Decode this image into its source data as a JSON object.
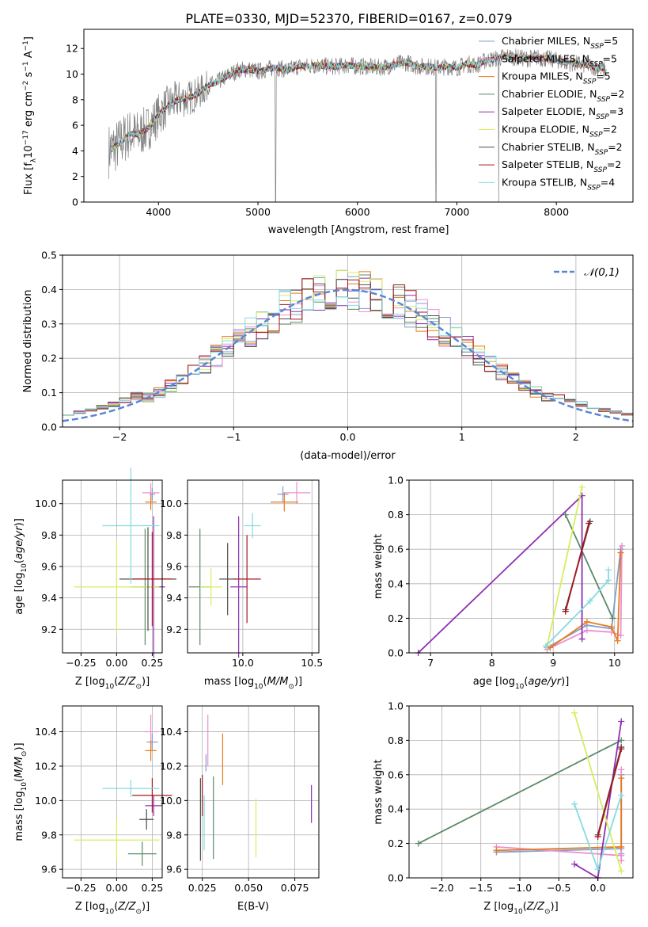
{
  "figure_title": "PLATE=0330, MJD=52370, FIBERID=0167, z=0.079",
  "colors": {
    "chabrier_miles": "#7f9fcf",
    "salpeter_miles": "#ea8fcf",
    "kroupa_miles": "#e77b1c",
    "chabrier_elodie": "#5b8a67",
    "salpeter_elodie": "#8e2fb0",
    "kroupa_elodie": "#d6ee5c",
    "chabrier_stelib": "#4e4e4e",
    "salpeter_stelib": "#a5161c",
    "kroupa_stelib": "#84dbe0",
    "data": "#808080",
    "gaussian": "#5b86d6",
    "grid": "#b0b0b0"
  },
  "chart_data": [
    {
      "id": "spectrum",
      "type": "line",
      "xlabel": "wavelength [Angstrom, rest frame]",
      "ylabel": "Flux [f_λ10^-17 erg cm^-2 s^-1 A^-1]",
      "xlim": [
        3250,
        8770
      ],
      "ylim": [
        0,
        13.5
      ],
      "xticks": [
        4000,
        5000,
        6000,
        7000,
        8000
      ],
      "yticks": [
        0,
        2,
        4,
        6,
        8,
        10,
        12
      ],
      "legend_position": "right",
      "legend": [
        {
          "label": "Chabrier MILES, N_SSP=5",
          "color_key": "chabrier_miles"
        },
        {
          "label": "Salpeter MILES, N_SSP=5",
          "color_key": "salpeter_miles"
        },
        {
          "label": "Kroupa MILES, N_SSP=5",
          "color_key": "kroupa_miles"
        },
        {
          "label": "Chabrier ELODIE, N_SSP=2",
          "color_key": "chabrier_elodie"
        },
        {
          "label": "Salpeter ELODIE, N_SSP=3",
          "color_key": "salpeter_elodie"
        },
        {
          "label": "Kroupa ELODIE, N_SSP=2",
          "color_key": "kroupa_elodie"
        },
        {
          "label": "Chabrier STELIB, N_SSP=2",
          "color_key": "chabrier_stelib"
        },
        {
          "label": "Salpeter STELIB, N_SSP=2",
          "color_key": "salpeter_stelib"
        },
        {
          "label": "Kroupa STELIB, N_SSP=4",
          "color_key": "kroupa_stelib"
        }
      ],
      "continuum": {
        "x": [
          3500,
          3600,
          3700,
          3800,
          3900,
          4000,
          4100,
          4200,
          4300,
          4400,
          4500,
          4600,
          4700,
          4800,
          4900,
          5000,
          5100,
          5200,
          5300,
          5400,
          5500,
          5600,
          5700,
          5800,
          5900,
          6000,
          6100,
          6200,
          6300,
          6400,
          6500,
          6600,
          6700,
          6800,
          6900,
          7000,
          7100,
          7200,
          7300,
          7400,
          7500,
          7600,
          7700,
          7800,
          7900,
          8000,
          8100,
          8200,
          8300,
          8400,
          8500
        ],
        "y": [
          4.0,
          4.5,
          5.3,
          5.3,
          5.8,
          6.8,
          7.6,
          8.0,
          8.1,
          8.5,
          9.1,
          9.4,
          9.9,
          10.3,
          10.4,
          10.2,
          10.4,
          10.5,
          10.3,
          10.6,
          10.6,
          10.7,
          10.6,
          10.6,
          10.7,
          10.6,
          10.6,
          10.5,
          10.6,
          10.8,
          10.9,
          10.6,
          10.6,
          10.5,
          10.6,
          10.5,
          10.8,
          10.7,
          11.1,
          11.2,
          11.4,
          11.3,
          11.2,
          11.3,
          11.2,
          11.1,
          10.9,
          10.8,
          10.7,
          10.5,
          10.3
        ]
      },
      "data_noise_amplitude": {
        "below_4500": 2.2,
        "above_4500": 0.7
      },
      "absorption_features": [
        {
          "x": 5178,
          "depth_to": 0.0
        },
        {
          "x": 6790,
          "depth_to": 0.0
        },
        {
          "x": 7420,
          "depth_to": 0.0
        }
      ]
    },
    {
      "id": "residual_histogram",
      "type": "bar",
      "xlabel": "(data-model)/error",
      "ylabel": "Normed distribution",
      "xlim": [
        -2.5,
        2.5
      ],
      "ylim": [
        0,
        0.5
      ],
      "xticks": [
        -2,
        -1,
        0,
        1,
        2
      ],
      "yticks": [
        0.0,
        0.1,
        0.2,
        0.3,
        0.4,
        0.5
      ],
      "bin_width": 0.1,
      "legend_position": "top-right",
      "gaussian_label": "𝒩(0,1)",
      "base_bins": [
        0.025,
        0.028,
        0.031,
        0.036,
        0.043,
        0.05,
        0.057,
        0.064,
        0.072,
        0.08,
        0.089,
        0.1,
        0.112,
        0.125,
        0.139,
        0.154,
        0.171,
        0.189,
        0.205,
        0.222,
        0.24,
        0.258,
        0.275,
        0.292,
        0.308,
        0.323,
        0.338,
        0.352,
        0.363,
        0.372,
        0.382,
        0.39,
        0.396,
        0.4,
        0.402,
        0.399,
        0.395,
        0.4,
        0.41,
        0.42,
        0.42,
        0.41,
        0.398,
        0.385,
        0.372,
        0.358,
        0.343,
        0.327,
        0.31,
        0.293,
        0.275,
        0.258,
        0.24,
        0.222,
        0.205,
        0.189,
        0.171,
        0.154,
        0.139,
        0.125,
        0.112,
        0.1,
        0.089,
        0.08,
        0.072,
        0.064,
        0.057,
        0.05,
        0.045,
        0.04,
        0.036,
        0.032,
        0.029,
        0.027,
        0.026,
        0.025,
        0.024,
        0.023,
        0.023,
        0.023,
        0.022,
        0.024,
        0.025,
        0.026,
        0.027,
        0.028,
        0.03,
        0.032,
        0.034,
        0.036,
        0.039,
        0.042,
        0.045,
        0.049,
        0.053,
        0.058,
        0.063,
        0.069,
        0.076,
        0.083
      ]
    },
    {
      "id": "age_vs_Z",
      "type": "scatter",
      "xlabel": "Z [log10(Z/Z⊙)]",
      "ylabel": "age  [log10(age/yr)]",
      "xlim": [
        -0.38,
        0.32
      ],
      "ylim": [
        9.05,
        10.15
      ],
      "xticks": [
        -0.25,
        0.0,
        0.25
      ],
      "xticklabels": [
        "−0.25",
        "0.00",
        "0.25"
      ],
      "yticks": [
        9.2,
        9.4,
        9.6,
        9.8,
        10.0
      ],
      "points": [
        {
          "key": "chabrier_miles",
          "x": 0.25,
          "xerr": 0.02,
          "y": 10.06,
          "yerr": 0.04
        },
        {
          "key": "salpeter_miles",
          "x": 0.24,
          "xerr": 0.06,
          "y": 10.07,
          "yerr": 0.06
        },
        {
          "key": "kroupa_miles",
          "x": 0.24,
          "xerr": 0.04,
          "y": 10.01,
          "yerr": 0.05
        },
        {
          "key": "chabrier_elodie",
          "x": 0.2,
          "xerr": 0.1,
          "y": 9.47,
          "yerr": 0.37
        },
        {
          "key": "salpeter_elodie",
          "x": 0.26,
          "xerr": 0.08,
          "y": 9.47,
          "yerr": 0.45
        },
        {
          "key": "kroupa_elodie",
          "x": 0.0,
          "xerr": 0.3,
          "y": 9.47,
          "yerr": 0.3
        },
        {
          "key": "chabrier_stelib",
          "x": 0.22,
          "xerr": 0.2,
          "y": 9.52,
          "yerr": 0.33
        },
        {
          "key": "salpeter_stelib",
          "x": 0.25,
          "xerr": 0.14,
          "y": 9.52,
          "yerr": 0.3
        },
        {
          "key": "kroupa_stelib",
          "x": 0.1,
          "xerr": 0.2,
          "y": 9.86,
          "yerr": 0.37
        }
      ]
    },
    {
      "id": "age_vs_mass",
      "type": "scatter",
      "xlabel": "mass [log10(M/M⊙)]",
      "ylabel": "",
      "xlim": [
        9.6,
        10.55
      ],
      "ylim": [
        9.05,
        10.15
      ],
      "xticks": [
        10.0,
        10.5
      ],
      "xticklabels": [
        "10.0",
        "10.5"
      ],
      "yticks": [
        9.2,
        9.4,
        9.6,
        9.8,
        10.0
      ],
      "points": [
        {
          "key": "chabrier_miles",
          "x": 10.29,
          "xerr": 0.04,
          "y": 10.06,
          "yerr": 0.05
        },
        {
          "key": "salpeter_miles",
          "x": 10.39,
          "xerr": 0.1,
          "y": 10.07,
          "yerr": 0.07
        },
        {
          "key": "kroupa_miles",
          "x": 10.3,
          "xerr": 0.1,
          "y": 10.01,
          "yerr": 0.06
        },
        {
          "key": "chabrier_elodie",
          "x": 9.69,
          "xerr": 0.08,
          "y": 9.47,
          "yerr": 0.37
        },
        {
          "key": "salpeter_elodie",
          "x": 9.97,
          "xerr": 0.06,
          "y": 9.47,
          "yerr": 0.45
        },
        {
          "key": "kroupa_elodie",
          "x": 9.77,
          "xerr": 0.08,
          "y": 9.47,
          "yerr": 0.12
        },
        {
          "key": "chabrier_stelib",
          "x": 9.89,
          "xerr": 0.06,
          "y": 9.52,
          "yerr": 0.23
        },
        {
          "key": "salpeter_stelib",
          "x": 10.03,
          "xerr": 0.1,
          "y": 9.52,
          "yerr": 0.28
        },
        {
          "key": "kroupa_stelib",
          "x": 10.07,
          "xerr": 0.06,
          "y": 9.86,
          "yerr": 0.08
        }
      ]
    },
    {
      "id": "weight_vs_age",
      "type": "line",
      "xlabel": "age  [log10(age/yr)]",
      "ylabel": "mass weight",
      "xlim": [
        6.65,
        10.3
      ],
      "ylim": [
        0,
        1.0
      ],
      "xticks": [
        7,
        8,
        9,
        10
      ],
      "yticks": [
        0.0,
        0.2,
        0.4,
        0.6,
        0.8,
        1.0
      ],
      "series": [
        {
          "key": "chabrier_miles",
          "x": [
            8.9,
            9.55,
            9.95,
            10.1
          ],
          "y": [
            0.03,
            0.16,
            0.14,
            0.6
          ]
        },
        {
          "key": "salpeter_miles",
          "x": [
            8.9,
            9.55,
            9.95,
            10.1,
            10.12
          ],
          "y": [
            0.02,
            0.13,
            0.12,
            0.1,
            0.62
          ]
        },
        {
          "key": "kroupa_miles",
          "x": [
            8.95,
            9.55,
            9.95,
            10.05,
            10.1
          ],
          "y": [
            0.03,
            0.18,
            0.15,
            0.07,
            0.58
          ]
        },
        {
          "key": "chabrier_elodie",
          "x": [
            9.2,
            9.97
          ],
          "y": [
            0.8,
            0.2
          ]
        },
        {
          "key": "salpeter_elodie",
          "x": [
            6.8,
            9.47,
            9.47
          ],
          "y": [
            0.0,
            0.91,
            0.08
          ]
        },
        {
          "key": "kroupa_elodie",
          "x": [
            8.9,
            9.47
          ],
          "y": [
            0.04,
            0.96
          ]
        },
        {
          "key": "chabrier_stelib",
          "x": [
            9.2,
            9.6
          ],
          "y": [
            0.25,
            0.76
          ]
        },
        {
          "key": "salpeter_stelib",
          "x": [
            9.2,
            9.58
          ],
          "y": [
            0.24,
            0.75
          ]
        },
        {
          "key": "kroupa_stelib",
          "x": [
            8.88,
            9.6,
            9.9,
            9.9
          ],
          "y": [
            0.04,
            0.3,
            0.42,
            0.48
          ]
        }
      ]
    },
    {
      "id": "mass_vs_Z",
      "type": "scatter",
      "xlabel": "Z [log10(Z/Z⊙)]",
      "ylabel": "mass [log10(M/M⊙)]",
      "xlim": [
        -0.38,
        0.32
      ],
      "ylim": [
        9.55,
        10.55
      ],
      "xticks": [
        -0.25,
        0.0,
        0.25
      ],
      "xticklabels": [
        "−0.25",
        "0.00",
        "0.25"
      ],
      "yticks": [
        9.6,
        9.8,
        10.0,
        10.2,
        10.4
      ],
      "points": [
        {
          "key": "chabrier_miles",
          "x": 0.25,
          "xerr": 0.04,
          "y": 10.34,
          "yerr": 0.05
        },
        {
          "key": "salpeter_miles",
          "x": 0.24,
          "xerr": 0.05,
          "y": 10.4,
          "yerr": 0.1
        },
        {
          "key": "kroupa_miles",
          "x": 0.24,
          "xerr": 0.04,
          "y": 10.29,
          "yerr": 0.06
        },
        {
          "key": "chabrier_elodie",
          "x": 0.18,
          "xerr": 0.1,
          "y": 9.69,
          "yerr": 0.07
        },
        {
          "key": "salpeter_elodie",
          "x": 0.26,
          "xerr": 0.06,
          "y": 9.97,
          "yerr": 0.06
        },
        {
          "key": "kroupa_elodie",
          "x": 0.0,
          "xerr": 0.3,
          "y": 9.77,
          "yerr": 0.12
        },
        {
          "key": "chabrier_stelib",
          "x": 0.21,
          "xerr": 0.05,
          "y": 9.89,
          "yerr": 0.06
        },
        {
          "key": "salpeter_stelib",
          "x": 0.25,
          "xerr": 0.14,
          "y": 10.03,
          "yerr": 0.1
        },
        {
          "key": "kroupa_stelib",
          "x": 0.1,
          "xerr": 0.2,
          "y": 10.07,
          "yerr": 0.05
        }
      ]
    },
    {
      "id": "mass_vs_ebv",
      "type": "scatter",
      "xlabel": "E(B-V)",
      "ylabel": "",
      "xlim": [
        0.017,
        0.088
      ],
      "ylim": [
        9.55,
        10.55
      ],
      "xticks": [
        0.025,
        0.05,
        0.075
      ],
      "xticklabels": [
        "0.025",
        "0.050",
        "0.075"
      ],
      "yticks": [
        9.6,
        9.8,
        10.0,
        10.2,
        10.4
      ],
      "points": [
        {
          "key": "chabrier_miles",
          "x": 0.027,
          "xerr": 0.0,
          "y": 10.22,
          "yerr": 0.05
        },
        {
          "key": "salpeter_miles",
          "x": 0.028,
          "xerr": 0.0,
          "y": 10.35,
          "yerr": 0.15
        },
        {
          "key": "kroupa_miles",
          "x": 0.036,
          "xerr": 0.0,
          "y": 10.24,
          "yerr": 0.15
        },
        {
          "key": "chabrier_elodie",
          "x": 0.031,
          "xerr": 0.0,
          "y": 9.9,
          "yerr": 0.24
        },
        {
          "key": "salpeter_elodie",
          "x": 0.084,
          "xerr": 0.0,
          "y": 9.98,
          "yerr": 0.11
        },
        {
          "key": "kroupa_elodie",
          "x": 0.054,
          "xerr": 0.0,
          "y": 9.84,
          "yerr": 0.17
        },
        {
          "key": "chabrier_stelib",
          "x": 0.024,
          "xerr": 0.0,
          "y": 9.89,
          "yerr": 0.24
        },
        {
          "key": "salpeter_stelib",
          "x": 0.025,
          "xerr": 0.0,
          "y": 10.03,
          "yerr": 0.12
        },
        {
          "key": "kroupa_stelib",
          "x": 0.026,
          "xerr": 0.0,
          "y": 9.87,
          "yerr": 0.16
        }
      ]
    },
    {
      "id": "weight_vs_Z",
      "type": "line",
      "xlabel": "Z [log10(Z/Z⊙)]",
      "ylabel": "mass weight",
      "xlim": [
        -2.42,
        0.45
      ],
      "ylim": [
        0,
        1.0
      ],
      "xticks": [
        -2.0,
        -1.5,
        -1.0,
        -0.5,
        0.0
      ],
      "xticklabels": [
        "−2.0",
        "−1.5",
        "−1.0",
        "−0.5",
        "0.0"
      ],
      "yticks": [
        0.0,
        0.2,
        0.4,
        0.6,
        0.8,
        1.0
      ],
      "series": [
        {
          "key": "chabrier_miles",
          "x": [
            -1.3,
            0.3,
            0.3,
            0.3
          ],
          "y": [
            0.15,
            0.17,
            0.14,
            0.6
          ]
        },
        {
          "key": "salpeter_miles",
          "x": [
            -1.3,
            0.3,
            0.3,
            0.3
          ],
          "y": [
            0.18,
            0.13,
            0.1,
            0.63
          ]
        },
        {
          "key": "kroupa_miles",
          "x": [
            -1.3,
            0.3,
            0.3
          ],
          "y": [
            0.16,
            0.18,
            0.58
          ]
        },
        {
          "key": "chabrier_elodie",
          "x": [
            -2.3,
            0.3
          ],
          "y": [
            0.2,
            0.8
          ]
        },
        {
          "key": "salpeter_elodie",
          "x": [
            -0.3,
            0.0,
            0.3
          ],
          "y": [
            0.08,
            0.0,
            0.91
          ]
        },
        {
          "key": "kroupa_elodie",
          "x": [
            -0.3,
            0.3
          ],
          "y": [
            0.96,
            0.04
          ]
        },
        {
          "key": "chabrier_stelib",
          "x": [
            0.0,
            0.3
          ],
          "y": [
            0.25,
            0.76
          ]
        },
        {
          "key": "salpeter_stelib",
          "x": [
            0.0,
            0.3
          ],
          "y": [
            0.24,
            0.75
          ]
        },
        {
          "key": "kroupa_stelib",
          "x": [
            -0.3,
            0.0,
            0.3
          ],
          "y": [
            0.43,
            0.05,
            0.48
          ]
        }
      ]
    }
  ]
}
